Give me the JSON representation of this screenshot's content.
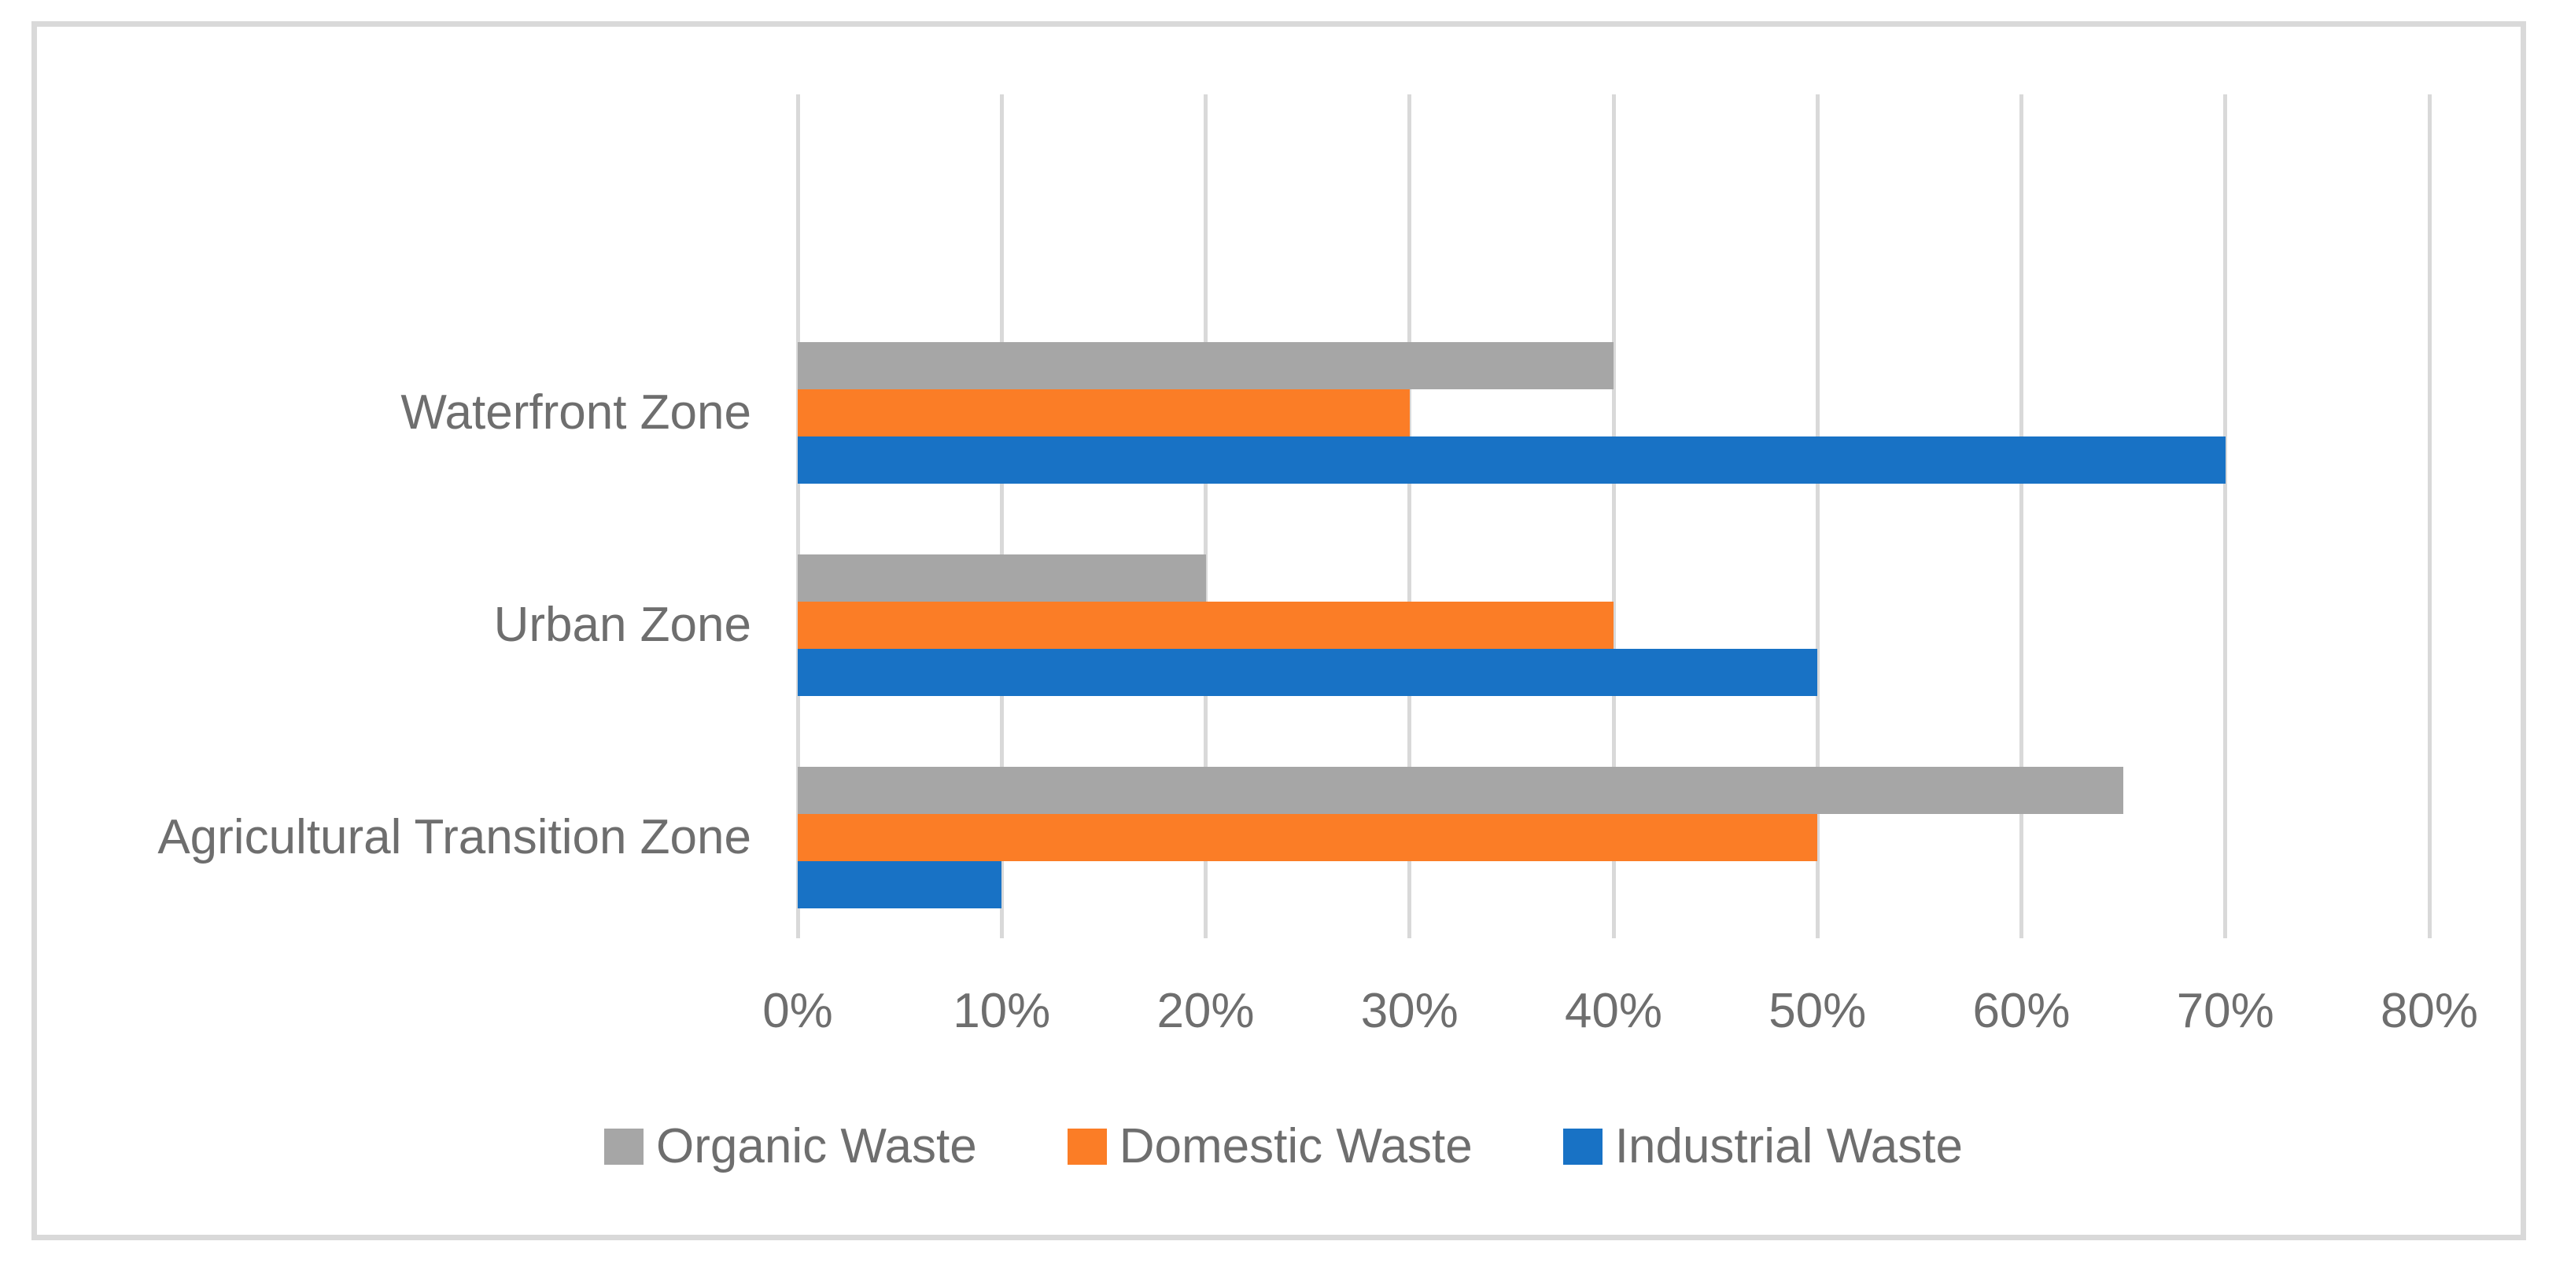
{
  "chart_data": {
    "type": "bar",
    "orientation": "horizontal",
    "title": "",
    "categories": [
      "Waterfront Zone",
      "Urban Zone",
      "Agricultural Transition Zone"
    ],
    "series": [
      {
        "name": "Organic Waste",
        "color": "#A6A6A6",
        "values": [
          40,
          20,
          65
        ]
      },
      {
        "name": "Domestic Waste",
        "color": "#FB7D26",
        "values": [
          30,
          40,
          50
        ]
      },
      {
        "name": "Industrial Waste",
        "color": "#1872C5",
        "values": [
          70,
          50,
          10
        ]
      }
    ],
    "x_axis": {
      "min": 0,
      "max": 80,
      "tick_step": 10,
      "tick_labels": [
        "0%",
        "10%",
        "20%",
        "30%",
        "40%",
        "50%",
        "60%",
        "70%",
        "80%"
      ],
      "unit": "%"
    },
    "grid": true,
    "legend_position": "bottom"
  },
  "colors": {
    "gridline": "#D9D9D9",
    "frame_border": "#D9D9D9",
    "text": "#6E6E6E",
    "background": "#FFFFFF"
  }
}
